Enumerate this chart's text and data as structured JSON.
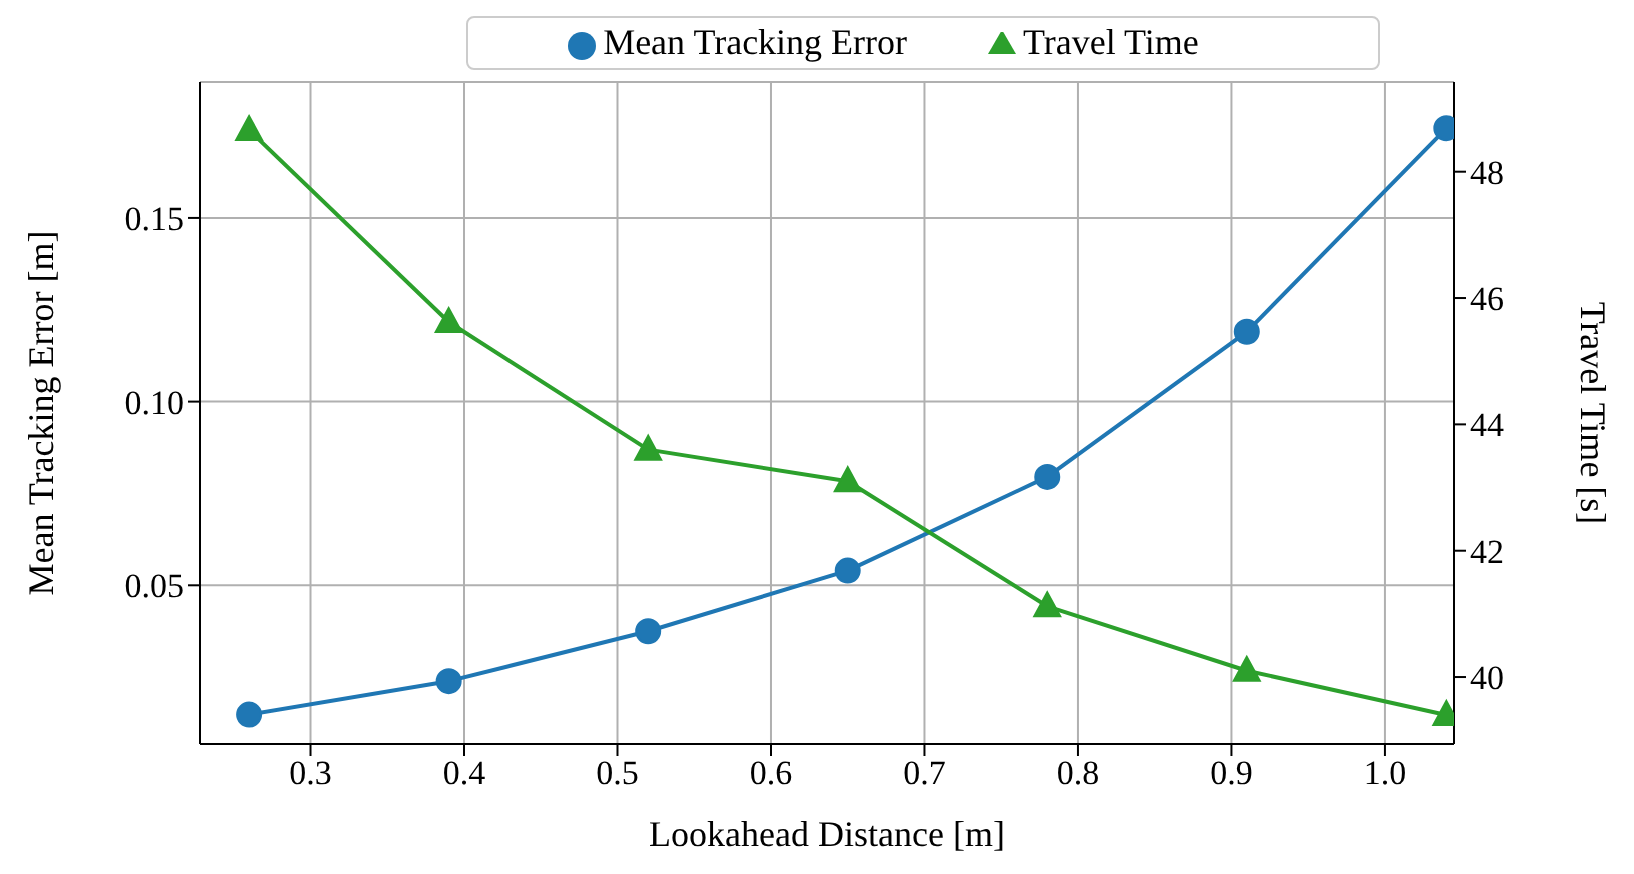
{
  "chart_data": {
    "type": "line",
    "xlabel": "Lookahead Distance [m]",
    "ylabel": "Mean Tracking Error [m]",
    "y2label": "Travel Time [s]",
    "x": [
      0.26,
      0.39,
      0.52,
      0.65,
      0.78,
      0.91,
      1.04
    ],
    "series": [
      {
        "name": "Mean Tracking Error",
        "color": "#1f77b4",
        "marker": "circle",
        "values": [
          0.0148,
          0.0239,
          0.0375,
          0.054,
          0.0795,
          0.119,
          0.1744
        ]
      },
      {
        "name": "Travel Time",
        "color": "#2ca02c",
        "marker": "triangle",
        "axis": "y2",
        "values": [
          48.66,
          45.62,
          43.6,
          43.1,
          41.12,
          40.1,
          39.4
        ]
      }
    ],
    "xlim": [
      0.228,
      1.045
    ],
    "xticks": [
      0.3,
      0.4,
      0.5,
      0.6,
      0.7,
      0.8,
      0.9,
      {
        "value": 1,
        "label": "1.0"
      }
    ],
    "ylim": [
      0.0068,
      0.187
    ],
    "yticks": [
      0.05,
      {
        "value": 0.1,
        "label": "0.10"
      },
      0.15
    ],
    "y2lim": [
      38.94,
      49.42
    ],
    "y2ticks": [
      40,
      42,
      44,
      46,
      48
    ],
    "grid": true,
    "legend": "top",
    "line_style": "solid"
  }
}
